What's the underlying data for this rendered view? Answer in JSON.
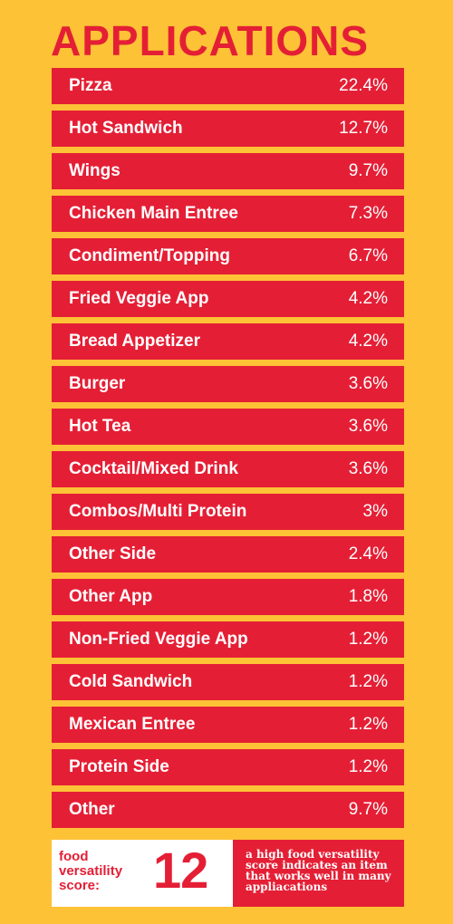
{
  "chart_data": {
    "type": "table",
    "title": "APPLICATIONS",
    "categories": [
      "Pizza",
      "Hot Sandwich",
      "Wings",
      "Chicken Main Entree",
      "Condiment/Topping",
      "Fried Veggie App",
      "Bread Appetizer",
      "Burger",
      "Hot Tea",
      "Cocktail/Mixed Drink",
      "Combos/Multi Protein",
      "Other Side",
      "Other App",
      "Non-Fried Veggie App",
      "Cold Sandwich",
      "Mexican Entree",
      "Protein Side",
      "Other"
    ],
    "values": [
      22.4,
      12.7,
      9.7,
      7.3,
      6.7,
      4.2,
      4.2,
      3.6,
      3.6,
      3.6,
      3,
      2.4,
      1.8,
      1.2,
      1.2,
      1.2,
      1.2,
      9.7
    ],
    "value_labels": [
      "22.4%",
      "12.7%",
      "9.7%",
      "7.3%",
      "6.7%",
      "4.2%",
      "4.2%",
      "3.6%",
      "3.6%",
      "3.6%",
      "3%",
      "2.4%",
      "1.8%",
      "1.2%",
      "1.2%",
      "1.2%",
      "1.2%",
      "9.7%"
    ]
  },
  "footer": {
    "score_label": "food versatility score:",
    "score_value": "12",
    "description": "a high food versatility score indicates an item that works well in many appliacations"
  },
  "colors": {
    "background": "#FDC236",
    "accent": "#E41F35",
    "text_on_accent": "#FFFFFF"
  }
}
